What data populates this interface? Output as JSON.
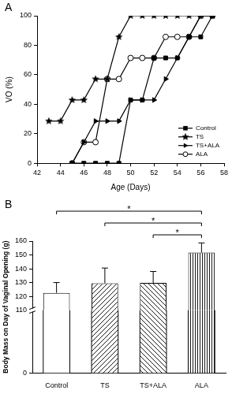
{
  "chart_data": [
    {
      "type": "line",
      "panel": "A",
      "x_label": "Age (Days)",
      "y_label": "VO (%)",
      "x": [
        43,
        44,
        45,
        46,
        47,
        48,
        49,
        50,
        51,
        52,
        53,
        54,
        55,
        56,
        57
      ],
      "series": [
        {
          "name": "Control",
          "color": "#000000",
          "marker": "square",
          "line_style": "solid",
          "values": [
            null,
            null,
            0,
            0,
            0,
            0,
            0,
            42.9,
            42.9,
            71.4,
            71.4,
            71.4,
            85.7,
            85.7,
            100
          ]
        },
        {
          "name": "TS",
          "color": "#000000",
          "marker": "star",
          "line_style": "solid",
          "values": [
            28.6,
            28.6,
            42.9,
            42.9,
            57.1,
            57.1,
            85.7,
            100,
            100,
            100,
            100,
            100,
            100,
            100,
            100
          ]
        },
        {
          "name": "TS+ALA",
          "color": "#000000",
          "marker": "triangle-right",
          "line_style": "solid",
          "values": [
            null,
            null,
            0,
            14.3,
            28.6,
            28.6,
            28.6,
            42.9,
            42.9,
            42.9,
            57.1,
            71.4,
            85.7,
            100,
            100
          ]
        },
        {
          "name": "ALA",
          "color": "#000000",
          "marker": "open-circle",
          "line_style": "solid",
          "values": [
            null,
            null,
            0,
            14.3,
            14.3,
            57.1,
            57.1,
            71.4,
            71.4,
            71.4,
            85.7,
            85.7,
            85.7,
            100,
            100
          ]
        }
      ],
      "xlim": [
        42,
        58
      ],
      "xticks": [
        42,
        44,
        46,
        48,
        50,
        52,
        54,
        56,
        58
      ],
      "ylim": [
        0,
        100
      ],
      "yticks": [
        0,
        20,
        40,
        60,
        80,
        100
      ],
      "grid": false,
      "legend": "lower right"
    },
    {
      "type": "bar",
      "panel": "B",
      "y_label": "Body Mass on Day of Vaginal Opening (g)",
      "categories": [
        "Control",
        "TS",
        "TS+ALA",
        "ALA"
      ],
      "values": [
        122.5,
        129.5,
        129.8,
        151.7
      ],
      "errors": [
        7.5,
        11,
        8.2,
        7
      ],
      "color": "#000000",
      "ylim": [
        0,
        160
      ],
      "yticks": [
        0,
        110,
        120,
        130,
        140,
        150,
        160
      ],
      "grid": false,
      "significance": [
        {
          "from": "TS+ALA",
          "to": "ALA",
          "label": "*"
        },
        {
          "from": "TS",
          "to": "ALA",
          "label": "*"
        },
        {
          "from": "Control",
          "to": "ALA",
          "label": "*"
        }
      ]
    }
  ]
}
